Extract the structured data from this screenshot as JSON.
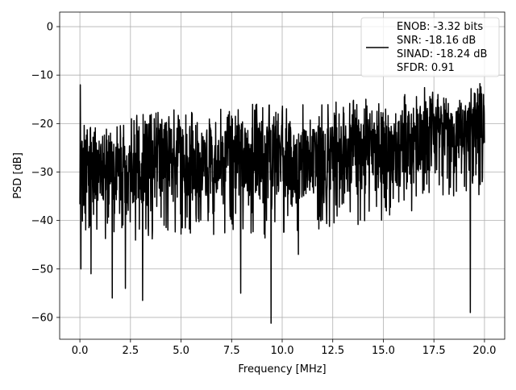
{
  "chart_data": {
    "type": "line",
    "title": "",
    "xlabel": "Frequency [MHz]",
    "ylabel": "PSD [dB]",
    "xlim": [
      -1.0,
      21.0
    ],
    "ylim": [
      -64.5,
      3.0
    ],
    "xticks": [
      0.0,
      2.5,
      5.0,
      7.5,
      10.0,
      12.5,
      15.0,
      17.5,
      20.0
    ],
    "xtick_labels": [
      "0.0",
      "2.5",
      "5.0",
      "7.5",
      "10.0",
      "12.5",
      "15.0",
      "17.5",
      "20.0"
    ],
    "yticks": [
      0,
      -10,
      -20,
      -30,
      -40,
      -50,
      -60
    ],
    "ytick_labels": [
      "0",
      "−10",
      "−20",
      "−30",
      "−40",
      "−50",
      "−60"
    ],
    "grid": true,
    "legend_position": "top-right",
    "series_color": "#000000",
    "series": [
      {
        "envelope": {
          "x": [
            0.0,
            0.5,
            1.0,
            2.0,
            3.0,
            4.0,
            5.0,
            6.0,
            7.0,
            8.0,
            9.0,
            10.0,
            11.0,
            12.0,
            13.0,
            14.0,
            15.0,
            16.0,
            16.5,
            17.0,
            17.5,
            18.0,
            18.5,
            19.0,
            19.5,
            20.0
          ],
          "center": [
            -30,
            -30,
            -30,
            -29.5,
            -29,
            -28.5,
            -28,
            -28,
            -28,
            -28,
            -28,
            -28,
            -28,
            -28,
            -27.5,
            -27,
            -26.5,
            -26,
            -24,
            -22,
            -21,
            -22,
            -23,
            -21,
            -20,
            -19
          ],
          "low": [
            -45,
            -46,
            -45,
            -44,
            -45,
            -44,
            -43,
            -43,
            -43,
            -43,
            -44,
            -43,
            -42,
            -42,
            -42,
            -41,
            -40,
            -38,
            -36,
            -35,
            -34,
            -36,
            -36,
            -36,
            -36,
            -36
          ],
          "high": [
            -20,
            -20,
            -20,
            -19,
            -18,
            -17,
            -17,
            -17,
            -16,
            -16,
            -16,
            -16,
            -16,
            -15.5,
            -15,
            -15,
            -14.5,
            -13,
            -11,
            -10,
            -11,
            -14,
            -16,
            -14,
            -12,
            -11
          ]
        },
        "notable_points": [
          {
            "x": 0.02,
            "y": -12
          },
          {
            "x": 0.05,
            "y": -50
          },
          {
            "x": 0.55,
            "y": -51
          },
          {
            "x": 1.6,
            "y": -56
          },
          {
            "x": 2.25,
            "y": -54
          },
          {
            "x": 3.1,
            "y": -56.5
          },
          {
            "x": 7.95,
            "y": -55
          },
          {
            "x": 9.45,
            "y": -61.2
          },
          {
            "x": 10.8,
            "y": -47
          },
          {
            "x": 16.4,
            "y": -38
          },
          {
            "x": 19.3,
            "y": -59
          },
          {
            "x": 19.95,
            "y": -14
          },
          {
            "x": 20.0,
            "y": -24
          }
        ]
      }
    ],
    "legend": {
      "lines": [
        "ENOB: -3.32 bits",
        "SNR: -18.16 dB",
        "SINAD: -18.24 dB",
        "SFDR: 0.91"
      ]
    }
  }
}
